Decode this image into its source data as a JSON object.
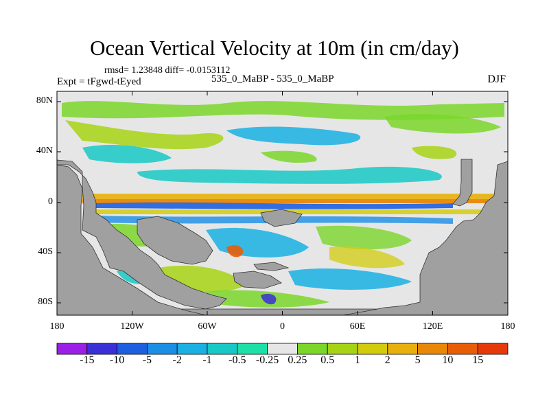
{
  "title": "Ocean Vertical Velocity at 10m (in cm/day)",
  "stats": "rmsd= 1.23848  diff= -0.0153112",
  "experiment": "Expt = tFgwd-tEyed",
  "runs": "535_0_MaBP - 535_0_MaBP",
  "season": "DJF",
  "axes": {
    "y_ticks": [
      "80N",
      "40N",
      "0",
      "40S",
      "80S"
    ],
    "x_ticks": [
      "180",
      "120W",
      "60W",
      "0",
      "60E",
      "120E",
      "180"
    ]
  },
  "colorbar": {
    "labels": [
      "-15",
      "-10",
      "-5",
      "-2",
      "-1",
      "-0.5",
      "-0.25",
      "0.25",
      "0.5",
      "1",
      "2",
      "5",
      "10",
      "15"
    ],
    "colors": [
      "#9b1fe6",
      "#3b2fd8",
      "#1e5fe0",
      "#1b8fe6",
      "#19b0e3",
      "#17c8c4",
      "#1ddfa8",
      "#e6e6e6",
      "#7bd62a",
      "#a6d313",
      "#d2cc0d",
      "#e8b00c",
      "#e98708",
      "#e85e06",
      "#e63a0c"
    ]
  },
  "map": {
    "land_color": "#a0a0a0",
    "background_color": "#e6e6e6"
  }
}
